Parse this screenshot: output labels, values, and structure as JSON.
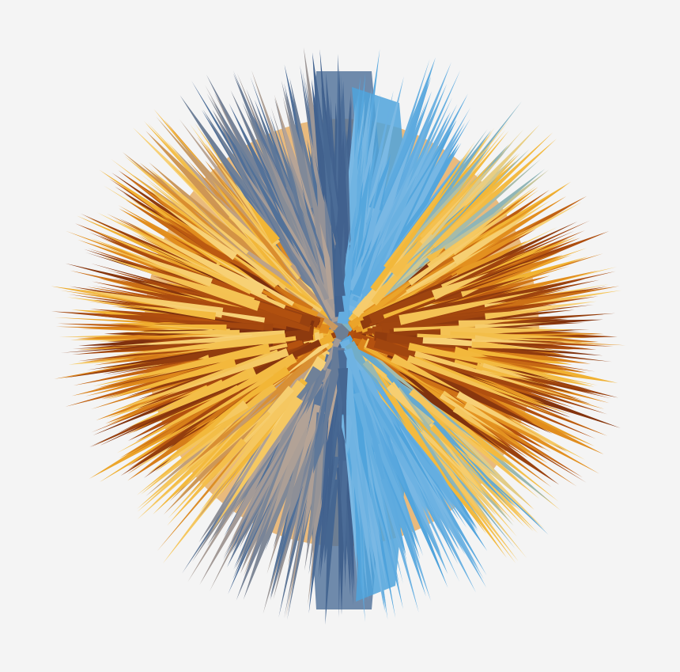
{
  "artwork": {
    "subject": "radial-spike-burst",
    "background_color": "#f4f4f4",
    "palette": {
      "dark_brown": "#7a2e0e",
      "rust": "#b5520f",
      "orange": "#e08a1c",
      "gold": "#f2b534",
      "pale_gold": "#f7d27a",
      "taupe": "#b8a596",
      "steel_blue": "#4e6f99",
      "deep_blue": "#3f5f8c",
      "sky_blue": "#4fa3dc",
      "light_blue": "#8fc3e8"
    }
  }
}
